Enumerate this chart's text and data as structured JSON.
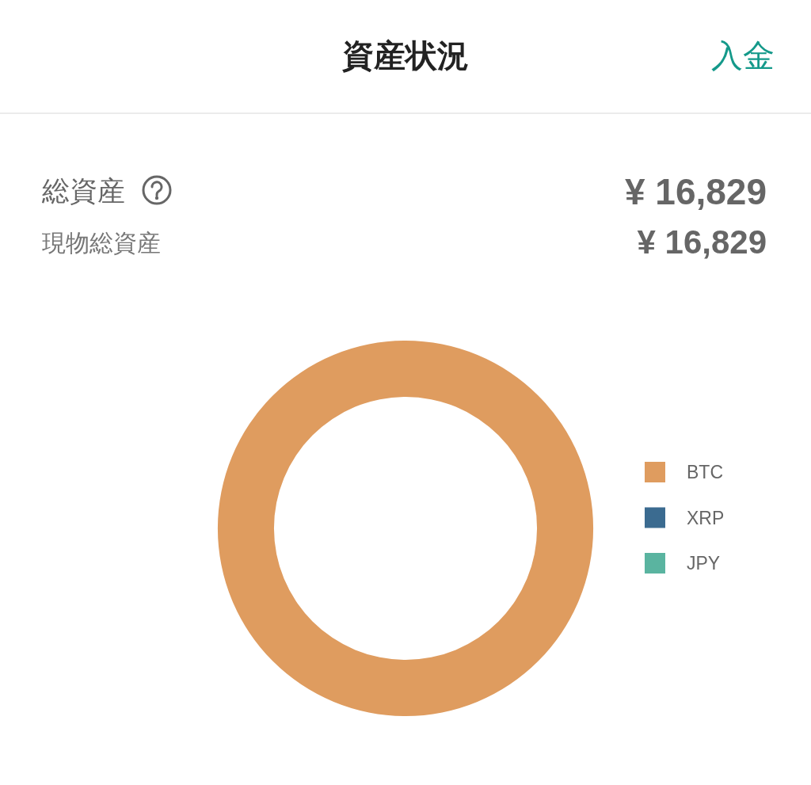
{
  "chart_data": {
    "type": "donut",
    "title": "資産状況",
    "categories": [
      "BTC",
      "XRP",
      "JPY"
    ],
    "values": [
      100,
      0,
      0
    ],
    "colors": [
      "#df9c5f",
      "#3b6b90",
      "#5ab4a0"
    ],
    "legend": "right",
    "annotations": [
      "入金",
      "総資産",
      "¥ 16,829",
      "現物総資産",
      "¥ 16,829"
    ]
  }
}
